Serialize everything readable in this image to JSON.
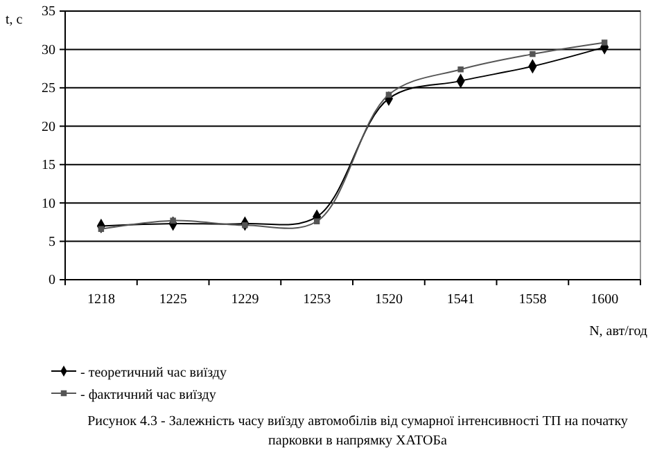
{
  "chart_data": {
    "type": "line",
    "categories": [
      "1218",
      "1225",
      "1229",
      "1253",
      "1520",
      "1541",
      "1558",
      "1600"
    ],
    "series": [
      {
        "name": "- теоретичний час виїзду",
        "color": "#000000",
        "marker": "diamond",
        "values": [
          7.0,
          7.3,
          7.3,
          8.2,
          23.6,
          25.9,
          27.8,
          30.3
        ]
      },
      {
        "name": "- фактичний час виїзду",
        "color": "#555555",
        "marker": "square",
        "values": [
          6.6,
          7.7,
          7.1,
          7.6,
          24.1,
          27.4,
          29.4,
          30.9
        ]
      }
    ],
    "ylim": [
      0,
      35
    ],
    "yticks": [
      0,
      5,
      10,
      15,
      20,
      25,
      30,
      35
    ],
    "ylabel": "t, c",
    "xlabel": "N, авт/год",
    "grid": "y",
    "legend": "bottom",
    "line_style": "solid",
    "annotations": [
      "Рисунок 4.3 - Залежність часу виїзду автомобілів від сумарної  інтенсивності ТП на початку парковки в напрямку ХАТОБа"
    ]
  }
}
